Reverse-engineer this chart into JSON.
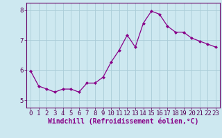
{
  "x": [
    0,
    1,
    2,
    3,
    4,
    5,
    6,
    7,
    8,
    9,
    10,
    11,
    12,
    13,
    14,
    15,
    16,
    17,
    18,
    19,
    20,
    21,
    22,
    23
  ],
  "y": [
    5.97,
    5.47,
    5.37,
    5.27,
    5.37,
    5.37,
    5.27,
    5.57,
    5.57,
    5.77,
    6.27,
    6.67,
    7.17,
    6.77,
    7.57,
    7.97,
    7.87,
    7.47,
    7.27,
    7.27,
    7.07,
    6.97,
    6.87,
    6.77
  ],
  "line_color": "#880088",
  "marker": "D",
  "marker_size": 2.0,
  "line_width": 0.9,
  "xlabel": "Windchill (Refroidissement éolien,°C)",
  "ylabel": "",
  "ylim": [
    4.75,
    8.25
  ],
  "xlim": [
    -0.5,
    23.5
  ],
  "yticks": [
    5,
    6,
    7,
    8
  ],
  "xtick_labels": [
    "0",
    "1",
    "2",
    "3",
    "4",
    "5",
    "6",
    "7",
    "8",
    "9",
    "10",
    "11",
    "12",
    "13",
    "14",
    "15",
    "16",
    "17",
    "18",
    "19",
    "20",
    "21",
    "22",
    "23"
  ],
  "background_color": "#cde8f0",
  "grid_color": "#aaccd8",
  "tick_fontsize": 6.5,
  "xlabel_fontsize": 7.0,
  "spine_color": "#660066"
}
